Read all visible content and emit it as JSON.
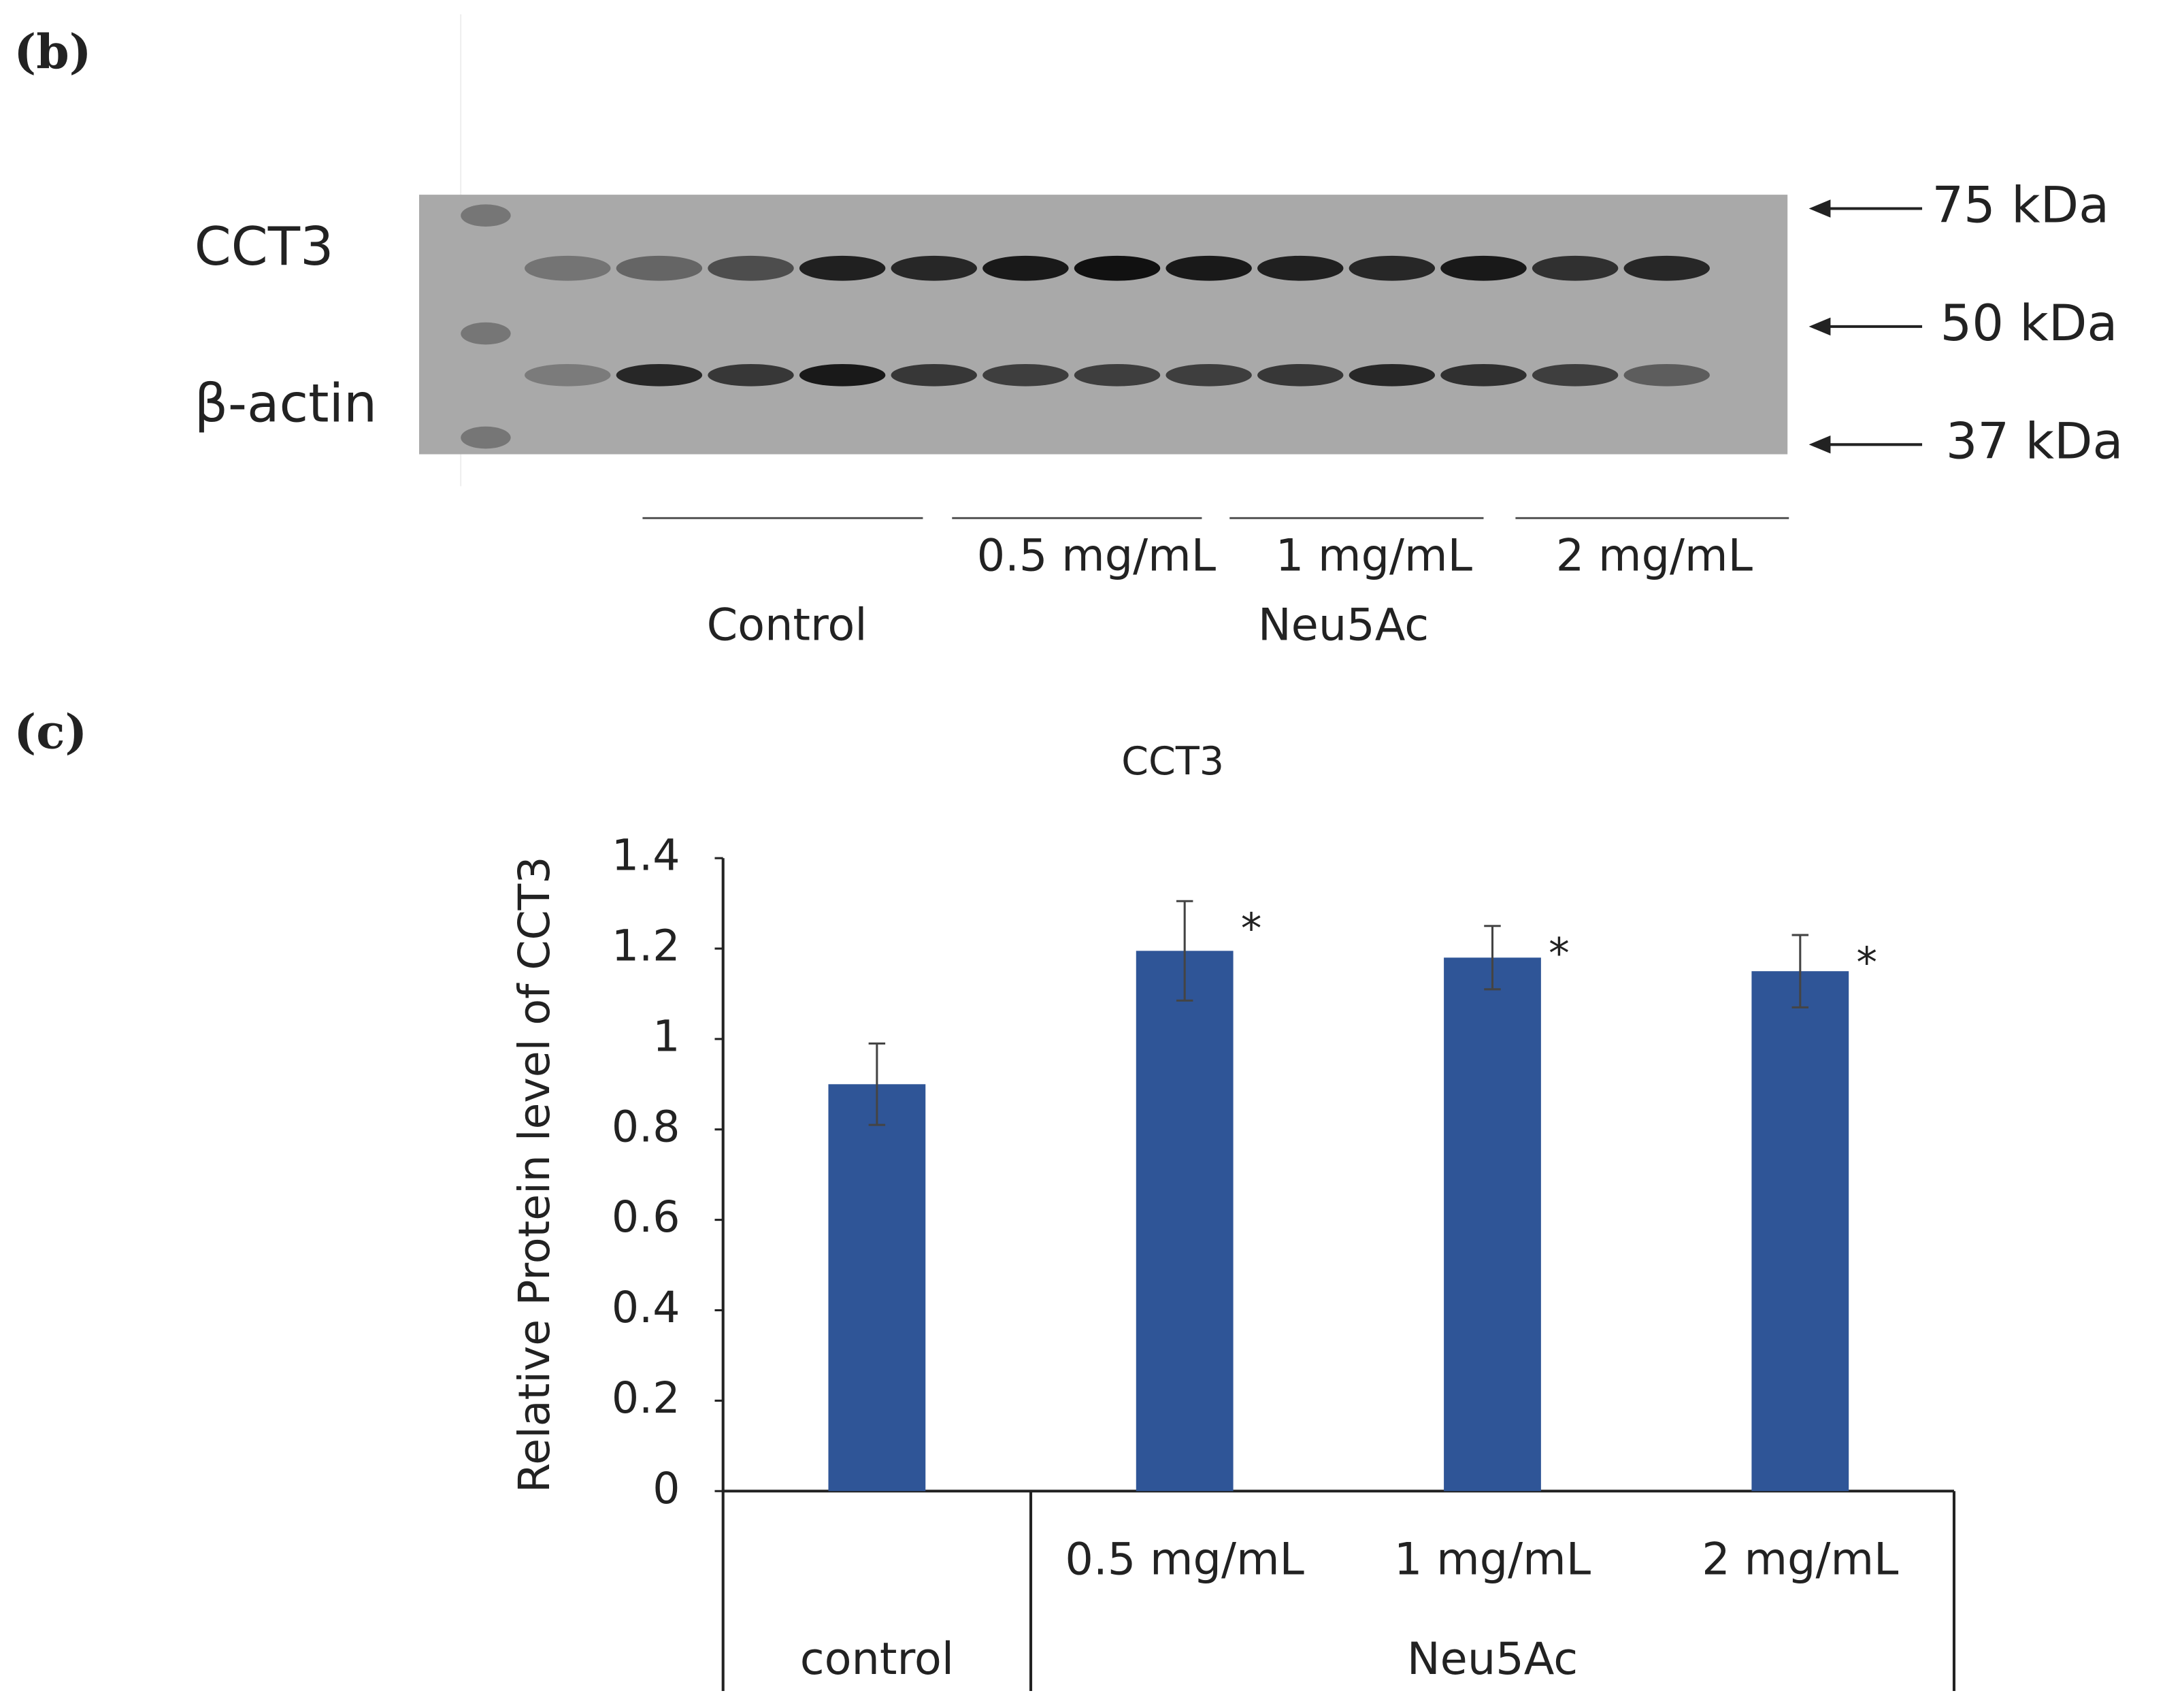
{
  "panel_labels": [
    "(b)",
    "(c)"
  ],
  "blot": {
    "row_labels": [
      "CCT3",
      "β-actin"
    ],
    "markers": [
      "75 kDa",
      "50 kDa",
      "37 kDa"
    ],
    "lane_labels": [
      "0.5 mg/mL",
      "1 mg/mL",
      "2 mg/mL"
    ],
    "group_labels": [
      "Control",
      "Neu5Ac"
    ]
  },
  "chart_data": {
    "type": "bar",
    "title": "CCT3",
    "y_label": "Relative Protein level of CCT3",
    "categories": [
      null,
      "0.5 mg/mL",
      "1 mg/mL",
      "2 mg/mL"
    ],
    "groups": [
      "control",
      "Neu5Ac"
    ],
    "values": [
      0.9,
      1.195,
      1.18,
      1.15
    ],
    "errors": [
      0.09,
      0.11,
      0.07,
      0.08
    ],
    "significance": [
      null,
      "*",
      "*",
      "*"
    ],
    "color": "#2f5597",
    "ylim": [
      0,
      1.4
    ],
    "yticks": [
      0,
      0.2,
      0.4,
      0.6,
      0.8,
      1,
      1.2,
      1.4
    ]
  }
}
